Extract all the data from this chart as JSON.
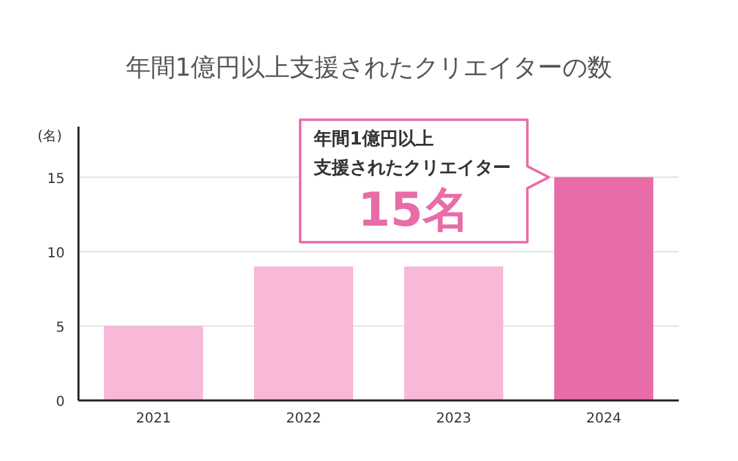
{
  "chart_data": {
    "type": "bar",
    "title": "年間1億円以上支援されたクリエイターの数",
    "ylabel": "(名)",
    "categories": [
      "2021",
      "2022",
      "2023",
      "2024"
    ],
    "values": [
      5,
      9,
      9,
      15
    ],
    "colors": [
      "#f8b8d8",
      "#f8b8d8",
      "#f8b8d8",
      "#e86ca8"
    ],
    "ylim": [
      0,
      18.4
    ],
    "yticks": [
      0,
      5,
      10,
      15
    ],
    "grid": "y",
    "annotations": [
      "年間1億円以上",
      "支援されたクリエイター",
      "15名"
    ]
  }
}
